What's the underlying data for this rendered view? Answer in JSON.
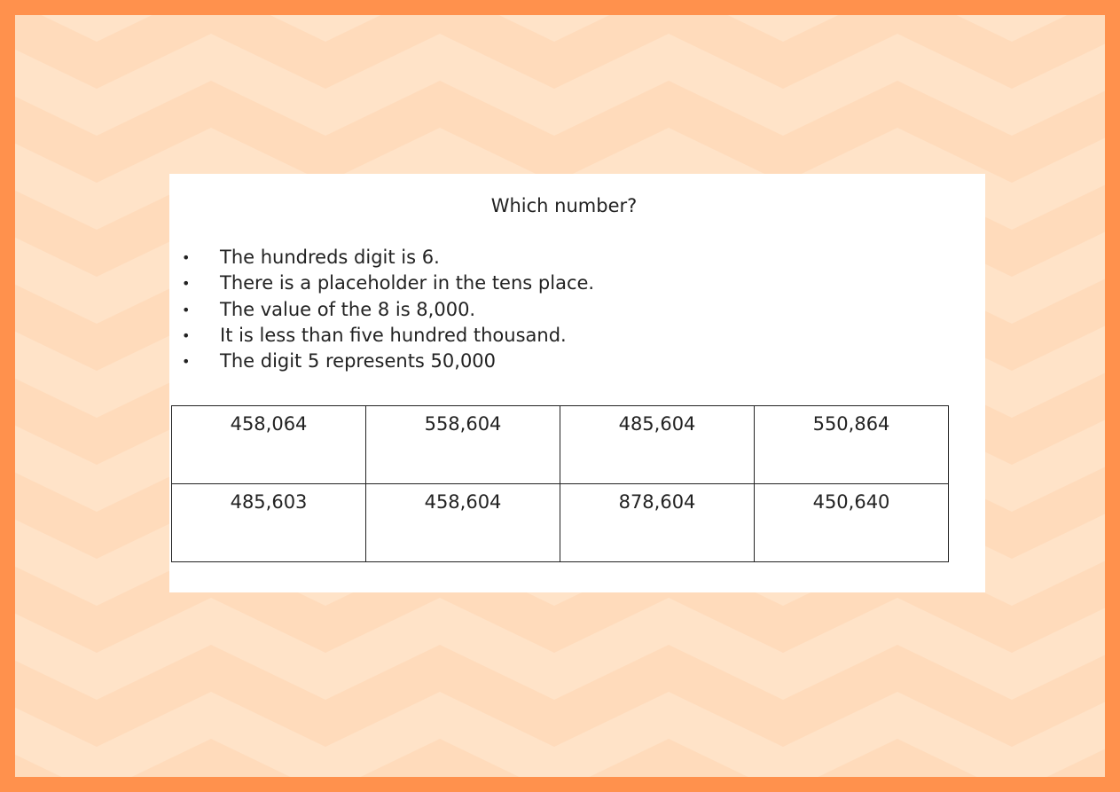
{
  "colors": {
    "border": "#FF914D",
    "stripe_light": "#FFE3C8",
    "stripe_dark": "#FFDBBB"
  },
  "question": {
    "title": "Which number?",
    "clues": [
      "The hundreds digit is 6.",
      "There is a placeholder in the tens place.",
      "The value of the 8 is 8,000.",
      "It is less than five hundred thousand.",
      "The digit 5 represents 50,000"
    ],
    "options": [
      [
        "458,064",
        "558,604",
        "485,604",
        "550,864"
      ],
      [
        "485,603",
        "458,604",
        "878,604",
        "450,640"
      ]
    ]
  }
}
